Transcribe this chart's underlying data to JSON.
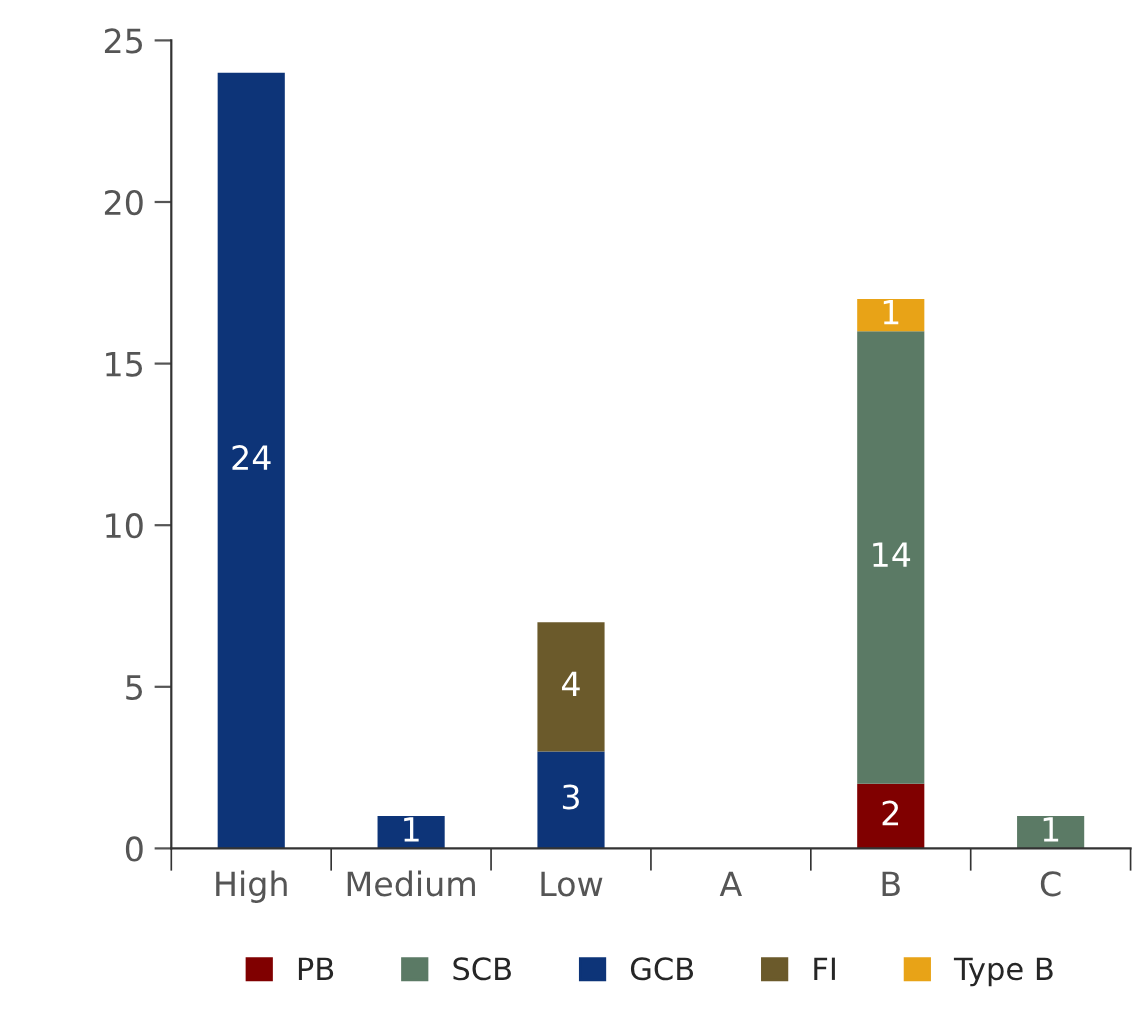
{
  "chart_data": {
    "type": "bar",
    "stacked": true,
    "categories": [
      "High",
      "Medium",
      "Low",
      "A",
      "B",
      "C"
    ],
    "series": [
      {
        "name": "PB",
        "color": "#800000",
        "values": [
          null,
          null,
          null,
          null,
          2,
          null
        ]
      },
      {
        "name": "SCB",
        "color": "#5b7a65",
        "values": [
          null,
          null,
          null,
          null,
          14,
          1
        ]
      },
      {
        "name": "GCB",
        "color": "#0d3478",
        "values": [
          24,
          1,
          3,
          null,
          null,
          null
        ]
      },
      {
        "name": "FI",
        "color": "#6b5a2b",
        "values": [
          null,
          null,
          4,
          null,
          null,
          null
        ]
      },
      {
        "name": "Type B",
        "color": "#e8a317",
        "values": [
          null,
          null,
          null,
          null,
          1,
          null
        ]
      }
    ],
    "ylim": [
      0,
      25
    ],
    "yticks": [
      0,
      5,
      10,
      15,
      20,
      25
    ],
    "grid": false,
    "legend": "bottom",
    "data_labels": true
  }
}
